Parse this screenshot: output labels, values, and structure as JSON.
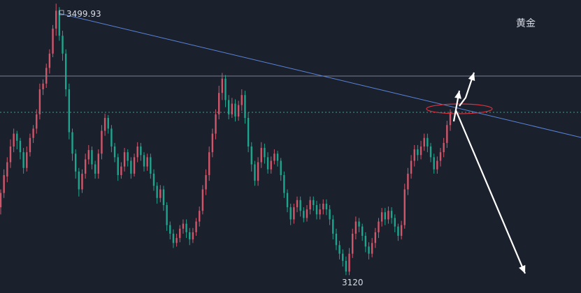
{
  "chart_data": {
    "type": "candlestick",
    "title": "黄金",
    "ylim": [
      3095,
      3505
    ],
    "high_label": "3499.93",
    "low_label": "3120",
    "colors": {
      "background": "#1a202c",
      "up": "#d0566a",
      "down": "#1fa58d",
      "trendline": "#5b84d8",
      "horizontal_line": "#7a8192",
      "dotted_line": "#3fa08c",
      "ellipse": "#d8323c",
      "arrow": "#ffffff"
    },
    "bars": [
      [
        3215,
        3235,
        3205,
        3240
      ],
      [
        3235,
        3260,
        3228,
        3268
      ],
      [
        3258,
        3278,
        3250,
        3285
      ],
      [
        3278,
        3300,
        3270,
        3310
      ],
      [
        3300,
        3318,
        3292,
        3325
      ],
      [
        3318,
        3308,
        3296,
        3322
      ],
      [
        3308,
        3292,
        3282,
        3312
      ],
      [
        3292,
        3270,
        3262,
        3298
      ],
      [
        3270,
        3292,
        3265,
        3300
      ],
      [
        3292,
        3312,
        3286,
        3318
      ],
      [
        3312,
        3325,
        3305,
        3330
      ],
      [
        3325,
        3345,
        3318,
        3352
      ],
      [
        3345,
        3380,
        3338,
        3388
      ],
      [
        3380,
        3388,
        3372,
        3394
      ],
      [
        3388,
        3410,
        3382,
        3416
      ],
      [
        3410,
        3430,
        3402,
        3436
      ],
      [
        3430,
        3465,
        3425,
        3470
      ],
      [
        3465,
        3490,
        3455,
        3499.93
      ],
      [
        3490,
        3455,
        3448,
        3495
      ],
      [
        3455,
        3430,
        3420,
        3462
      ],
      [
        3430,
        3380,
        3370,
        3436
      ],
      [
        3380,
        3320,
        3310,
        3388
      ],
      [
        3320,
        3290,
        3280,
        3325
      ],
      [
        3290,
        3265,
        3255,
        3296
      ],
      [
        3265,
        3240,
        3230,
        3270
      ],
      [
        3240,
        3262,
        3235,
        3268
      ],
      [
        3262,
        3282,
        3255,
        3290
      ],
      [
        3282,
        3295,
        3275,
        3302
      ],
      [
        3295,
        3275,
        3268,
        3300
      ],
      [
        3275,
        3262,
        3255,
        3280
      ],
      [
        3262,
        3290,
        3255,
        3296
      ],
      [
        3290,
        3322,
        3282,
        3330
      ],
      [
        3322,
        3340,
        3315,
        3346
      ],
      [
        3340,
        3325,
        3318,
        3344
      ],
      [
        3325,
        3300,
        3292,
        3330
      ],
      [
        3300,
        3285,
        3278,
        3305
      ],
      [
        3285,
        3260,
        3252,
        3290
      ],
      [
        3260,
        3272,
        3255,
        3278
      ],
      [
        3272,
        3292,
        3265,
        3298
      ],
      [
        3292,
        3280,
        3272,
        3296
      ],
      [
        3280,
        3262,
        3255,
        3285
      ],
      [
        3262,
        3285,
        3258,
        3290
      ],
      [
        3285,
        3300,
        3278,
        3306
      ],
      [
        3300,
        3288,
        3280,
        3305
      ],
      [
        3288,
        3272,
        3265,
        3292
      ],
      [
        3272,
        3285,
        3266,
        3290
      ],
      [
        3285,
        3262,
        3255,
        3290
      ],
      [
        3262,
        3245,
        3238,
        3268
      ],
      [
        3245,
        3228,
        3220,
        3250
      ],
      [
        3228,
        3240,
        3222,
        3246
      ],
      [
        3240,
        3218,
        3210,
        3245
      ],
      [
        3218,
        3190,
        3182,
        3222
      ],
      [
        3190,
        3178,
        3170,
        3195
      ],
      [
        3178,
        3165,
        3158,
        3184
      ],
      [
        3165,
        3172,
        3160,
        3178
      ],
      [
        3172,
        3185,
        3166,
        3190
      ],
      [
        3185,
        3192,
        3178,
        3198
      ],
      [
        3192,
        3180,
        3172,
        3198
      ],
      [
        3180,
        3170,
        3162,
        3186
      ],
      [
        3170,
        3180,
        3165,
        3186
      ],
      [
        3180,
        3195,
        3175,
        3200
      ],
      [
        3195,
        3210,
        3188,
        3216
      ],
      [
        3210,
        3240,
        3205,
        3246
      ],
      [
        3240,
        3260,
        3232,
        3268
      ],
      [
        3260,
        3292,
        3252,
        3300
      ],
      [
        3292,
        3318,
        3285,
        3325
      ],
      [
        3318,
        3345,
        3310,
        3352
      ],
      [
        3345,
        3375,
        3338,
        3385
      ],
      [
        3375,
        3395,
        3365,
        3403
      ],
      [
        3395,
        3365,
        3355,
        3400
      ],
      [
        3365,
        3345,
        3338,
        3372
      ],
      [
        3345,
        3360,
        3340,
        3368
      ],
      [
        3360,
        3342,
        3335,
        3366
      ],
      [
        3342,
        3358,
        3336,
        3364
      ],
      [
        3358,
        3372,
        3350,
        3380
      ],
      [
        3372,
        3340,
        3332,
        3378
      ],
      [
        3340,
        3300,
        3292,
        3348
      ],
      [
        3300,
        3275,
        3265,
        3306
      ],
      [
        3275,
        3252,
        3245,
        3280
      ],
      [
        3252,
        3278,
        3245,
        3285
      ],
      [
        3278,
        3298,
        3270,
        3306
      ],
      [
        3298,
        3285,
        3276,
        3304
      ],
      [
        3285,
        3268,
        3262,
        3292
      ],
      [
        3268,
        3280,
        3262,
        3286
      ],
      [
        3280,
        3290,
        3275,
        3296
      ],
      [
        3290,
        3280,
        3272,
        3294
      ],
      [
        3280,
        3260,
        3252,
        3284
      ],
      [
        3260,
        3235,
        3228,
        3265
      ],
      [
        3235,
        3215,
        3208,
        3240
      ],
      [
        3215,
        3198,
        3190,
        3220
      ],
      [
        3198,
        3215,
        3192,
        3220
      ],
      [
        3215,
        3225,
        3208,
        3230
      ],
      [
        3225,
        3210,
        3202,
        3230
      ],
      [
        3210,
        3200,
        3194,
        3215
      ],
      [
        3200,
        3212,
        3195,
        3218
      ],
      [
        3212,
        3225,
        3205,
        3230
      ],
      [
        3225,
        3218,
        3210,
        3230
      ],
      [
        3218,
        3205,
        3198,
        3224
      ],
      [
        3205,
        3212,
        3198,
        3220
      ],
      [
        3212,
        3220,
        3205,
        3226
      ],
      [
        3220,
        3212,
        3204,
        3226
      ],
      [
        3212,
        3198,
        3190,
        3218
      ],
      [
        3198,
        3178,
        3170,
        3204
      ],
      [
        3178,
        3162,
        3155,
        3185
      ],
      [
        3162,
        3150,
        3142,
        3168
      ],
      [
        3150,
        3140,
        3132,
        3156
      ],
      [
        3140,
        3125,
        3120,
        3146
      ],
      [
        3125,
        3150,
        3120,
        3158
      ],
      [
        3150,
        3178,
        3144,
        3185
      ],
      [
        3178,
        3195,
        3170,
        3202
      ],
      [
        3195,
        3188,
        3180,
        3200
      ],
      [
        3188,
        3175,
        3168,
        3192
      ],
      [
        3175,
        3160,
        3152,
        3180
      ],
      [
        3160,
        3150,
        3142,
        3166
      ],
      [
        3150,
        3165,
        3145,
        3172
      ],
      [
        3165,
        3180,
        3158,
        3186
      ],
      [
        3180,
        3195,
        3172,
        3200
      ],
      [
        3195,
        3208,
        3188,
        3214
      ],
      [
        3208,
        3198,
        3190,
        3214
      ],
      [
        3198,
        3210,
        3192,
        3216
      ],
      [
        3210,
        3200,
        3192,
        3215
      ],
      [
        3200,
        3188,
        3180,
        3205
      ],
      [
        3188,
        3175,
        3168,
        3192
      ],
      [
        3175,
        3190,
        3170,
        3196
      ],
      [
        3190,
        3240,
        3185,
        3248
      ],
      [
        3240,
        3262,
        3232,
        3270
      ],
      [
        3262,
        3280,
        3255,
        3288
      ],
      [
        3280,
        3296,
        3272,
        3302
      ],
      [
        3296,
        3288,
        3280,
        3302
      ],
      [
        3288,
        3300,
        3282,
        3308
      ],
      [
        3300,
        3312,
        3294,
        3318
      ],
      [
        3312,
        3300,
        3292,
        3318
      ],
      [
        3300,
        3285,
        3278,
        3305
      ],
      [
        3285,
        3268,
        3262,
        3290
      ],
      [
        3268,
        3280,
        3262,
        3286
      ],
      [
        3280,
        3292,
        3272,
        3298
      ],
      [
        3292,
        3305,
        3285,
        3312
      ],
      [
        3305,
        3330,
        3298,
        3336
      ],
      [
        3330,
        3348,
        3322,
        3352
      ]
    ]
  }
}
